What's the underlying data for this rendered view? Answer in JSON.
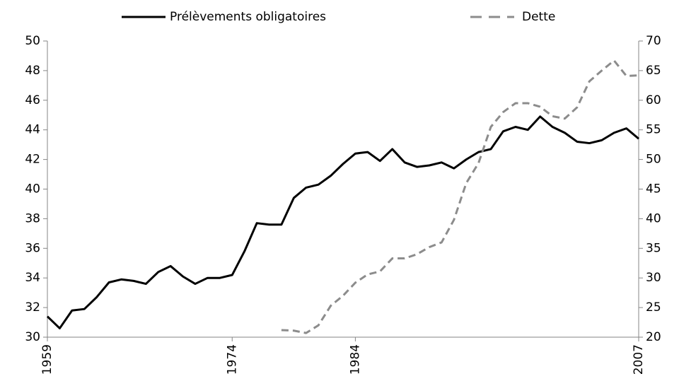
{
  "chart_data": {
    "type": "line",
    "x": [
      1959,
      1960,
      1961,
      1962,
      1963,
      1964,
      1965,
      1966,
      1967,
      1968,
      1969,
      1970,
      1971,
      1972,
      1973,
      1974,
      1975,
      1976,
      1977,
      1978,
      1979,
      1980,
      1981,
      1982,
      1983,
      1984,
      1985,
      1986,
      1987,
      1988,
      1989,
      1990,
      1991,
      1992,
      1993,
      1994,
      1995,
      1996,
      1997,
      1998,
      1999,
      2000,
      2001,
      2002,
      2003,
      2004,
      2005,
      2006,
      2007
    ],
    "xlim": [
      1959,
      2007
    ],
    "xticks": [
      1959,
      1974,
      1984,
      2007
    ],
    "ylim": [
      30,
      50
    ],
    "yticks": [
      30,
      32,
      34,
      36,
      38,
      40,
      42,
      44,
      46,
      48,
      50
    ],
    "y2lim": [
      20,
      70
    ],
    "y2ticks": [
      20,
      25,
      30,
      35,
      40,
      45,
      50,
      55,
      60,
      65,
      70
    ],
    "legend": "top",
    "series": [
      {
        "name": "Prélèvements obligatoires",
        "color": "#000000",
        "dash": false,
        "values": [
          31.4,
          30.6,
          31.8,
          31.9,
          32.7,
          33.7,
          33.9,
          33.8,
          33.6,
          34.4,
          34.8,
          34.1,
          33.6,
          34.0,
          34.0,
          34.2,
          35.8,
          37.7,
          37.6,
          37.6,
          39.4,
          40.1,
          40.3,
          40.9,
          41.7,
          42.4,
          42.5,
          41.9,
          42.7,
          41.8,
          41.5,
          41.6,
          41.8,
          41.4,
          42.0,
          42.5,
          42.7,
          43.9,
          44.2,
          44.0,
          44.9,
          44.2,
          43.8,
          43.2,
          43.1,
          43.3,
          43.8,
          44.1,
          43.4
        ]
      },
      {
        "name": "Dette",
        "color": "#8c8c8c",
        "dash": true,
        "axis": "y2",
        "values": [
          null,
          null,
          null,
          null,
          null,
          null,
          null,
          null,
          null,
          null,
          null,
          null,
          null,
          null,
          null,
          null,
          null,
          null,
          null,
          21.2,
          21.1,
          20.7,
          22.0,
          25.3,
          27.0,
          29.2,
          30.6,
          31.1,
          33.3,
          33.3,
          34.0,
          35.2,
          36.0,
          39.8,
          46.0,
          49.4,
          55.5,
          58.0,
          59.5,
          59.5,
          58.9,
          57.3,
          56.9,
          58.8,
          63.2,
          65.0,
          66.7,
          64.1,
          64.2
        ]
      }
    ]
  }
}
